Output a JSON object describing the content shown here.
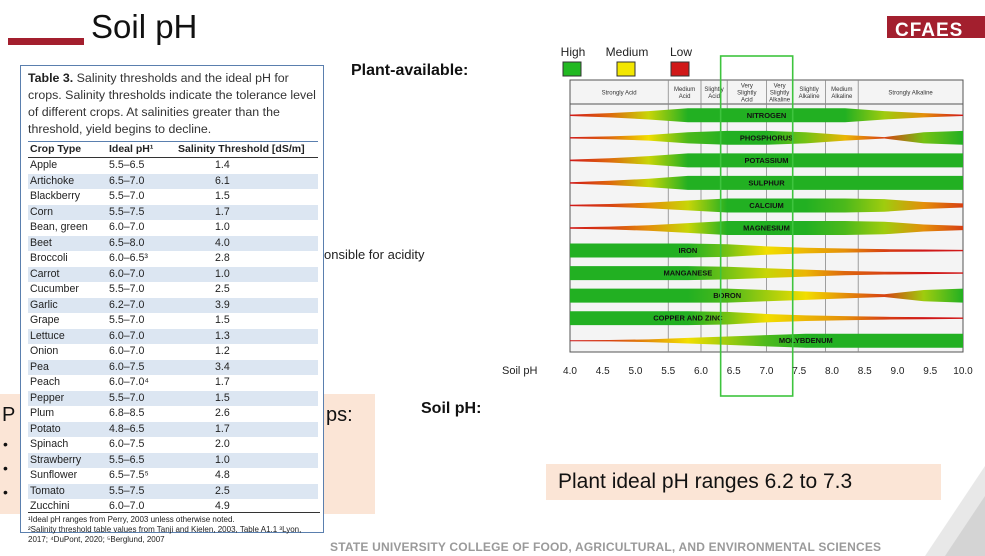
{
  "slide": {
    "title": "Soil pH",
    "logo_text": "CFAES",
    "plant_available_label": "Plant-available:",
    "soil_ph_label": "Soil pH:",
    "partial_text": "onsible for acidity",
    "bullet_box": {
      "fragment_left": "P",
      "fragment_right": "ps:",
      "bullets": [
        "•",
        "•",
        "•"
      ]
    },
    "ideal_box_text": "Plant ideal pH ranges 6.2 to 7.3",
    "footer": "STATE UNIVERSITY COLLEGE OF FOOD, AGRICULTURAL, AND ENVIRONMENTAL SCIENCES"
  },
  "table": {
    "caption_bold": "Table 3.",
    "caption_text": "Salinity thresholds and the ideal pH for crops. Salinity thresholds indicate the tolerance level of different crops. At salinities greater than the threshold, yield begins to decline.",
    "headers": [
      "Crop Type",
      "Ideal pH¹",
      "Salinity Threshold [dS/m]"
    ],
    "rows": [
      [
        "Apple",
        "5.5–6.5",
        "1.4"
      ],
      [
        "Artichoke",
        "6.5–7.0",
        "6.1"
      ],
      [
        "Blackberry",
        "5.5–7.0",
        "1.5"
      ],
      [
        "Corn",
        "5.5–7.5",
        "1.7"
      ],
      [
        "Bean, green",
        "6.0–7.0",
        "1.0"
      ],
      [
        "Beet",
        "6.5–8.0",
        "4.0"
      ],
      [
        "Broccoli",
        "6.0–6.5³",
        "2.8"
      ],
      [
        "Carrot",
        "6.0–7.0",
        "1.0"
      ],
      [
        "Cucumber",
        "5.5–7.0",
        "2.5"
      ],
      [
        "Garlic",
        "6.2–7.0",
        "3.9"
      ],
      [
        "Grape",
        "5.5–7.0",
        "1.5"
      ],
      [
        "Lettuce",
        "6.0–7.0",
        "1.3"
      ],
      [
        "Onion",
        "6.0–7.0",
        "1.2"
      ],
      [
        "Pea",
        "6.0–7.5",
        "3.4"
      ],
      [
        "Peach",
        "6.0–7.0⁴",
        "1.7"
      ],
      [
        "Pepper",
        "5.5–7.0",
        "1.5"
      ],
      [
        "Plum",
        "6.8–8.5",
        "2.6"
      ],
      [
        "Potato",
        "4.8–6.5",
        "1.7"
      ],
      [
        "Spinach",
        "6.0–7.5",
        "2.0"
      ],
      [
        "Strawberry",
        "5.5–6.5",
        "1.0"
      ],
      [
        "Sunflower",
        "6.5–7.5⁵",
        "4.8"
      ],
      [
        "Tomato",
        "5.5–7.5",
        "2.5"
      ],
      [
        "Zucchini",
        "6.0–7.0",
        "4.9"
      ]
    ],
    "notes": [
      "¹Ideal pH ranges from Perry, 2003 unless otherwise noted.",
      "²Salinity threshold table values from Tanji and Kielen, 2003, Table A1.1 ³Lyon, 2017; ⁴DuPont, 2020; ⁵Berglund, 2007"
    ]
  },
  "chart_data": {
    "type": "heatmap",
    "legend": [
      {
        "label": "High",
        "color": "#22b822"
      },
      {
        "label": "Medium",
        "color": "#f2e600"
      },
      {
        "label": "Low",
        "color": "#d01818"
      }
    ],
    "xlabel": "Soil pH",
    "x_ticks": [
      "4.0",
      "4.5",
      "5.0",
      "5.5",
      "6.0",
      "6.5",
      "7.0",
      "7.5",
      "8.0",
      "8.5",
      "9.0",
      "9.5",
      "10.0"
    ],
    "xlim": [
      4.0,
      10.0
    ],
    "zones": [
      {
        "label": "Strongly Acid",
        "from": 4.0,
        "to": 5.5
      },
      {
        "label": "Medium Acid",
        "from": 5.5,
        "to": 6.0
      },
      {
        "label": "Slightly Acid",
        "from": 6.0,
        "to": 6.4
      },
      {
        "label": "Very Slightly Acid",
        "from": 6.4,
        "to": 7.0
      },
      {
        "label": "Very Slightly Alkaline",
        "from": 7.0,
        "to": 7.4
      },
      {
        "label": "Slightly Alkaline",
        "from": 7.4,
        "to": 7.9
      },
      {
        "label": "Medium Alkaline",
        "from": 7.9,
        "to": 8.4
      },
      {
        "label": "Strongly Alkaline",
        "from": 8.4,
        "to": 10.0
      }
    ],
    "highlight_range": [
      6.3,
      7.4
    ],
    "nutrients": [
      {
        "name": "NITROGEN",
        "w": [
          0.1,
          0.3,
          0.6,
          1,
          1,
          1,
          1,
          1,
          0.6,
          0.3,
          0.1
        ],
        "c": [
          0,
          0.2,
          0.6,
          1,
          1,
          1,
          1,
          1,
          0.7,
          0.3,
          0
        ]
      },
      {
        "name": "PHOSPHORUS",
        "w": [
          0.1,
          0.2,
          0.4,
          0.8,
          1,
          1,
          0.8,
          0.4,
          0.1,
          0.8,
          1
        ],
        "c": [
          0,
          0.2,
          0.5,
          0.9,
          1,
          1,
          0.8,
          0.4,
          0.1,
          0.8,
          1
        ]
      },
      {
        "name": "POTASSIUM",
        "w": [
          0.1,
          0.3,
          0.6,
          1,
          1,
          1,
          1,
          1,
          1,
          1,
          1
        ],
        "c": [
          0,
          0.2,
          0.6,
          1,
          1,
          1,
          1,
          1,
          1,
          1,
          1
        ]
      },
      {
        "name": "SULPHUR",
        "w": [
          0.1,
          0.3,
          0.6,
          1,
          1,
          1,
          1,
          1,
          1,
          1,
          1
        ],
        "c": [
          0,
          0.2,
          0.6,
          1,
          1,
          1,
          1,
          1,
          1,
          1,
          1
        ]
      },
      {
        "name": "CALCIUM",
        "w": [
          0.1,
          0.2,
          0.4,
          0.7,
          1,
          1,
          1,
          1,
          0.9,
          0.5,
          0.3
        ],
        "c": [
          0,
          0.1,
          0.3,
          0.6,
          1,
          1,
          1,
          0.9,
          0.7,
          0.3,
          0.1
        ]
      },
      {
        "name": "MAGNESIUM",
        "w": [
          0.1,
          0.2,
          0.4,
          0.7,
          1,
          1,
          1,
          1,
          0.9,
          0.5,
          0.3
        ],
        "c": [
          0,
          0.1,
          0.3,
          0.6,
          1,
          1,
          1,
          0.9,
          0.7,
          0.3,
          0.1
        ]
      },
      {
        "name": "IRON",
        "w": [
          1,
          1,
          1,
          1,
          0.9,
          0.6,
          0.4,
          0.3,
          0.2,
          0.15,
          0.1
        ],
        "c": [
          1,
          1,
          1,
          1,
          0.8,
          0.5,
          0.4,
          0.3,
          0.1,
          0,
          0
        ]
      },
      {
        "name": "MANGANESE",
        "w": [
          1,
          1,
          1,
          1,
          0.9,
          0.7,
          0.5,
          0.3,
          0.2,
          0.15,
          0.1
        ],
        "c": [
          1,
          1,
          1,
          1,
          0.8,
          0.6,
          0.4,
          0.2,
          0.1,
          0,
          0
        ]
      },
      {
        "name": "BORON",
        "w": [
          1,
          1,
          1,
          1,
          1,
          0.8,
          0.6,
          0.4,
          0.2,
          0.8,
          1
        ],
        "c": [
          1,
          1,
          1,
          1,
          0.9,
          0.7,
          0.5,
          0.3,
          0.1,
          0.7,
          1
        ]
      },
      {
        "name": "COPPER AND ZINC",
        "w": [
          1,
          1,
          1,
          1,
          0.9,
          0.6,
          0.4,
          0.3,
          0.2,
          0.15,
          0.1
        ],
        "c": [
          1,
          1,
          1,
          1,
          0.8,
          0.5,
          0.4,
          0.3,
          0.1,
          0,
          0
        ]
      },
      {
        "name": "MOLYBDENUM",
        "w": [
          0.05,
          0.1,
          0.2,
          0.4,
          0.6,
          0.8,
          1,
          1,
          1,
          1,
          1
        ],
        "c": [
          0,
          0.1,
          0.3,
          0.5,
          0.7,
          0.9,
          1,
          1,
          1,
          1,
          1
        ]
      }
    ]
  }
}
